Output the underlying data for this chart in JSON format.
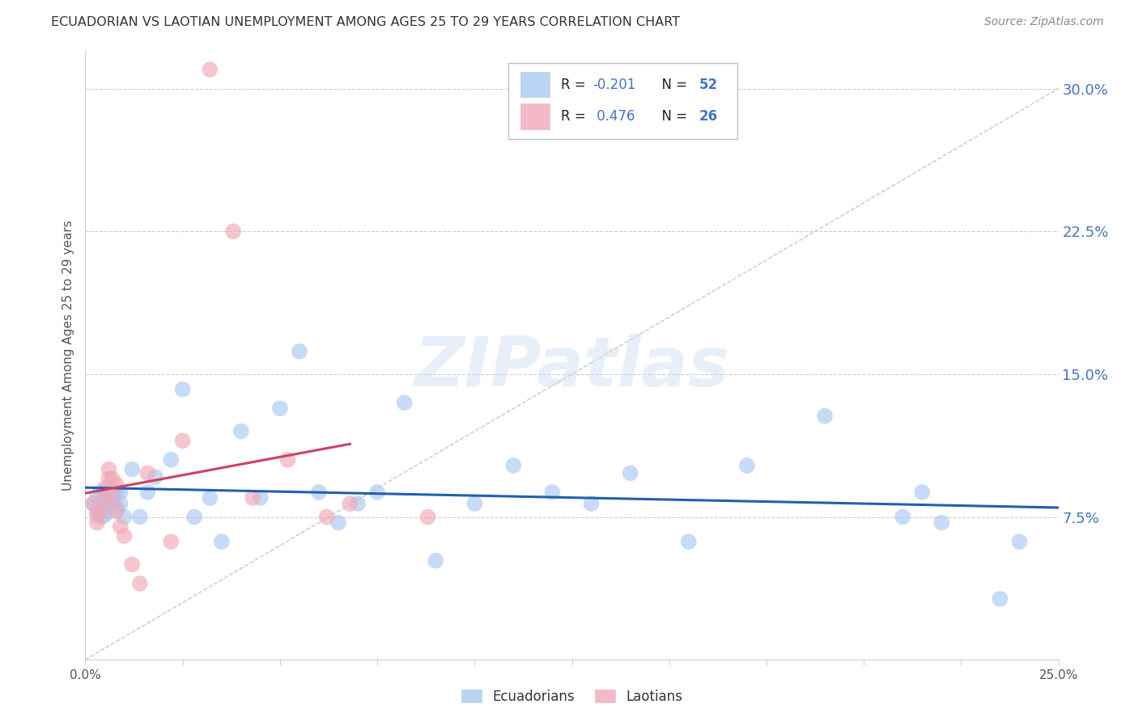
{
  "title": "ECUADORIAN VS LAOTIAN UNEMPLOYMENT AMONG AGES 25 TO 29 YEARS CORRELATION CHART",
  "source": "Source: ZipAtlas.com",
  "ylabel": "Unemployment Among Ages 25 to 29 years",
  "xlim": [
    0.0,
    0.25
  ],
  "ylim": [
    0.0,
    0.32
  ],
  "ytick_vals": [
    0.075,
    0.15,
    0.225,
    0.3
  ],
  "ytick_labels": [
    "7.5%",
    "15.0%",
    "22.5%",
    "30.0%"
  ],
  "blue_color": "#a8c8f0",
  "pink_color": "#f0a8b8",
  "trend_blue": "#2060b0",
  "trend_pink": "#d04060",
  "watermark": "ZIPatlas",
  "blue_r": "-0.201",
  "blue_n": "52",
  "pink_r": "0.476",
  "pink_n": "26",
  "blue_dots_x": [
    0.002,
    0.003,
    0.003,
    0.004,
    0.004,
    0.004,
    0.005,
    0.005,
    0.005,
    0.006,
    0.006,
    0.006,
    0.007,
    0.007,
    0.007,
    0.008,
    0.008,
    0.009,
    0.009,
    0.01,
    0.012,
    0.014,
    0.016,
    0.018,
    0.022,
    0.025,
    0.028,
    0.032,
    0.035,
    0.04,
    0.045,
    0.05,
    0.055,
    0.06,
    0.065,
    0.07,
    0.075,
    0.082,
    0.09,
    0.1,
    0.11,
    0.12,
    0.13,
    0.14,
    0.155,
    0.17,
    0.19,
    0.21,
    0.215,
    0.22,
    0.235,
    0.24
  ],
  "blue_dots_y": [
    0.082,
    0.078,
    0.086,
    0.082,
    0.088,
    0.075,
    0.088,
    0.082,
    0.076,
    0.085,
    0.082,
    0.078,
    0.088,
    0.082,
    0.085,
    0.088,
    0.08,
    0.088,
    0.082,
    0.075,
    0.1,
    0.075,
    0.088,
    0.096,
    0.105,
    0.142,
    0.075,
    0.085,
    0.062,
    0.12,
    0.085,
    0.132,
    0.162,
    0.088,
    0.072,
    0.082,
    0.088,
    0.135,
    0.052,
    0.082,
    0.102,
    0.088,
    0.082,
    0.098,
    0.062,
    0.102,
    0.128,
    0.075,
    0.088,
    0.072,
    0.032,
    0.062
  ],
  "pink_dots_x": [
    0.002,
    0.003,
    0.003,
    0.004,
    0.005,
    0.005,
    0.006,
    0.006,
    0.007,
    0.007,
    0.008,
    0.008,
    0.009,
    0.01,
    0.012,
    0.014,
    0.016,
    0.022,
    0.025,
    0.032,
    0.038,
    0.043,
    0.052,
    0.062,
    0.068,
    0.088
  ],
  "pink_dots_y": [
    0.082,
    0.076,
    0.072,
    0.078,
    0.09,
    0.085,
    0.1,
    0.095,
    0.095,
    0.085,
    0.092,
    0.078,
    0.07,
    0.065,
    0.05,
    0.04,
    0.098,
    0.062,
    0.115,
    0.31,
    0.225,
    0.085,
    0.105,
    0.075,
    0.082,
    0.075
  ],
  "pink_trend_x0": 0.0,
  "pink_trend_x1": 0.068,
  "blue_trend_x0": 0.0,
  "blue_trend_x1": 0.25
}
